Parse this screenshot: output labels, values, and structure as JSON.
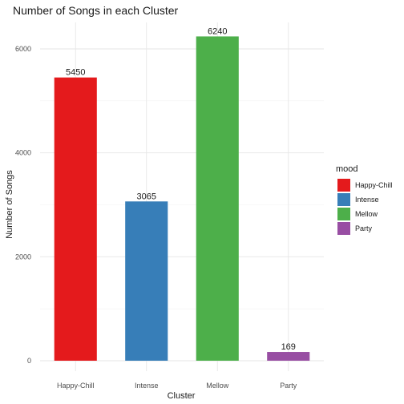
{
  "chart_data": {
    "type": "bar",
    "title": "Number of Songs in each Cluster",
    "xlabel": "Cluster",
    "ylabel": "Number of Songs",
    "categories": [
      "Happy-Chill",
      "Intense",
      "Mellow",
      "Party"
    ],
    "values": [
      5450,
      3065,
      6240,
      169
    ],
    "colors": [
      "#E41A1C",
      "#377EB8",
      "#4DAF4A",
      "#984EA3"
    ],
    "ylim": [
      0,
      6600
    ],
    "yticks": [
      0,
      2000,
      4000,
      6000
    ],
    "grid": true,
    "legend": {
      "title": "mood",
      "position": "right",
      "entries": [
        "Happy-Chill",
        "Intense",
        "Mellow",
        "Party"
      ]
    }
  }
}
